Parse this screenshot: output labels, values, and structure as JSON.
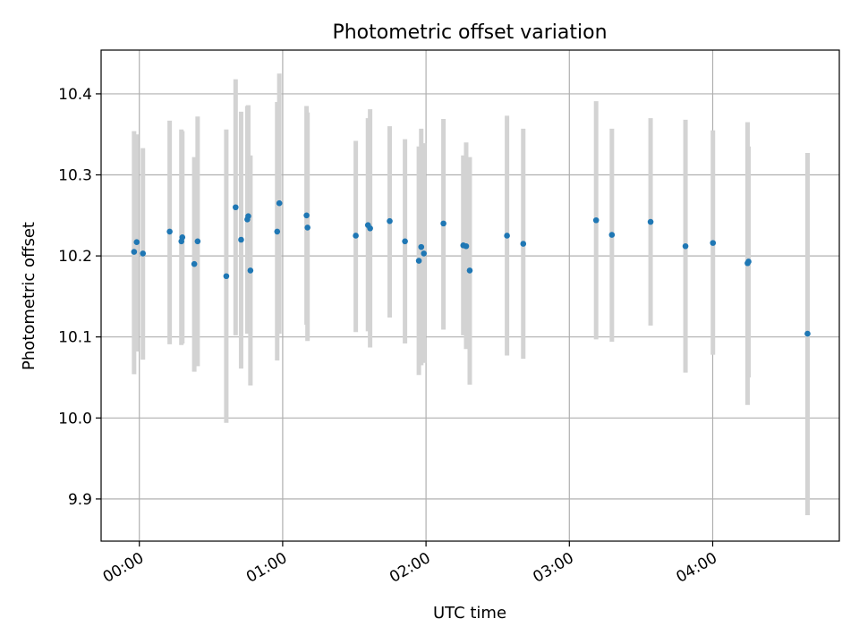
{
  "chart_data": {
    "type": "scatter",
    "title": "Photometric offset variation",
    "xlabel": "UTC time",
    "ylabel": "Photometric offset",
    "x_unit": "minutes",
    "xlim": [
      -16,
      293
    ],
    "ylim": [
      9.848,
      10.454
    ],
    "x_ticks": [
      {
        "value": 0,
        "label": "00:00"
      },
      {
        "value": 60,
        "label": "01:00"
      },
      {
        "value": 120,
        "label": "02:00"
      },
      {
        "value": 180,
        "label": "03:00"
      },
      {
        "value": 240,
        "label": "04:00"
      }
    ],
    "y_ticks": [
      {
        "value": 9.9,
        "label": "9.9"
      },
      {
        "value": 10.0,
        "label": "10.0"
      },
      {
        "value": 10.1,
        "label": "10.1"
      },
      {
        "value": 10.2,
        "label": "10.2"
      },
      {
        "value": 10.3,
        "label": "10.3"
      },
      {
        "value": 10.4,
        "label": "10.4"
      }
    ],
    "grid": true,
    "point_color": "#1f77b4",
    "errorbar_color": "#d3d3d3",
    "series": [
      {
        "points": [
          {
            "x": -2.2,
            "y": 10.205,
            "lo": 10.054,
            "hi": 10.354
          },
          {
            "x": -1.1,
            "y": 10.217,
            "lo": 10.082,
            "hi": 10.35
          },
          {
            "x": 1.5,
            "y": 10.203,
            "lo": 10.072,
            "hi": 10.333
          },
          {
            "x": 12.7,
            "y": 10.23,
            "lo": 10.091,
            "hi": 10.367
          },
          {
            "x": 17.6,
            "y": 10.218,
            "lo": 10.09,
            "hi": 10.356
          },
          {
            "x": 18.0,
            "y": 10.223,
            "lo": 10.092,
            "hi": 10.354
          },
          {
            "x": 23.0,
            "y": 10.19,
            "lo": 10.057,
            "hi": 10.322
          },
          {
            "x": 24.4,
            "y": 10.218,
            "lo": 10.064,
            "hi": 10.372
          },
          {
            "x": 36.4,
            "y": 10.175,
            "lo": 9.994,
            "hi": 10.356
          },
          {
            "x": 40.3,
            "y": 10.26,
            "lo": 10.102,
            "hi": 10.418
          },
          {
            "x": 42.6,
            "y": 10.22,
            "lo": 10.061,
            "hi": 10.378
          },
          {
            "x": 45.2,
            "y": 10.245,
            "lo": 10.104,
            "hi": 10.385
          },
          {
            "x": 45.6,
            "y": 10.249,
            "lo": 10.112,
            "hi": 10.386
          },
          {
            "x": 46.5,
            "y": 10.182,
            "lo": 10.04,
            "hi": 10.324
          },
          {
            "x": 57.7,
            "y": 10.23,
            "lo": 10.071,
            "hi": 10.39
          },
          {
            "x": 58.6,
            "y": 10.265,
            "lo": 10.104,
            "hi": 10.425
          },
          {
            "x": 70.0,
            "y": 10.25,
            "lo": 10.115,
            "hi": 10.385
          },
          {
            "x": 70.4,
            "y": 10.235,
            "lo": 10.095,
            "hi": 10.377
          },
          {
            "x": 90.6,
            "y": 10.225,
            "lo": 10.106,
            "hi": 10.342
          },
          {
            "x": 95.7,
            "y": 10.238,
            "lo": 10.107,
            "hi": 10.37
          },
          {
            "x": 96.6,
            "y": 10.234,
            "lo": 10.087,
            "hi": 10.381
          },
          {
            "x": 104.8,
            "y": 10.243,
            "lo": 10.124,
            "hi": 10.36
          },
          {
            "x": 111.2,
            "y": 10.218,
            "lo": 10.092,
            "hi": 10.344
          },
          {
            "x": 117.0,
            "y": 10.194,
            "lo": 10.053,
            "hi": 10.335
          },
          {
            "x": 118.0,
            "y": 10.211,
            "lo": 10.065,
            "hi": 10.357
          },
          {
            "x": 119.1,
            "y": 10.203,
            "lo": 10.068,
            "hi": 10.339
          },
          {
            "x": 127.3,
            "y": 10.24,
            "lo": 10.109,
            "hi": 10.369
          },
          {
            "x": 135.6,
            "y": 10.213,
            "lo": 10.102,
            "hi": 10.324
          },
          {
            "x": 136.8,
            "y": 10.212,
            "lo": 10.085,
            "hi": 10.34
          },
          {
            "x": 138.3,
            "y": 10.182,
            "lo": 10.041,
            "hi": 10.322
          },
          {
            "x": 153.9,
            "y": 10.225,
            "lo": 10.077,
            "hi": 10.373
          },
          {
            "x": 160.7,
            "y": 10.215,
            "lo": 10.073,
            "hi": 10.357
          },
          {
            "x": 191.2,
            "y": 10.244,
            "lo": 10.097,
            "hi": 10.391
          },
          {
            "x": 197.8,
            "y": 10.226,
            "lo": 10.094,
            "hi": 10.357
          },
          {
            "x": 214.0,
            "y": 10.242,
            "lo": 10.114,
            "hi": 10.37
          },
          {
            "x": 228.6,
            "y": 10.212,
            "lo": 10.056,
            "hi": 10.368
          },
          {
            "x": 240.1,
            "y": 10.216,
            "lo": 10.078,
            "hi": 10.355
          },
          {
            "x": 254.6,
            "y": 10.191,
            "lo": 10.016,
            "hi": 10.365
          },
          {
            "x": 255.0,
            "y": 10.193,
            "lo": 10.05,
            "hi": 10.335
          },
          {
            "x": 279.7,
            "y": 10.104,
            "lo": 9.88,
            "hi": 10.327
          }
        ]
      }
    ]
  }
}
